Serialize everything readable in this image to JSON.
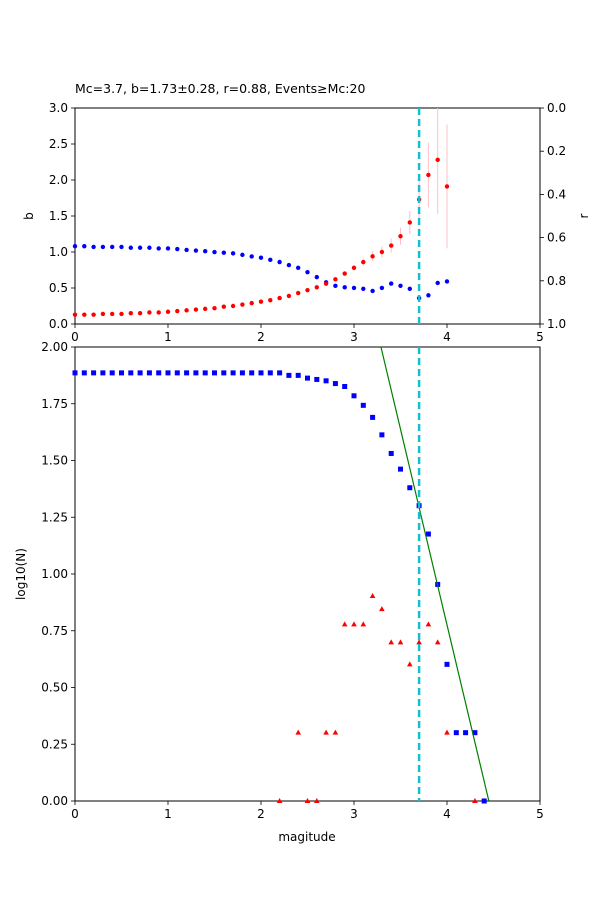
{
  "chart_data": [
    {
      "type": "scatter",
      "title": "Mc=3.7, b=1.73±0.28, r=0.88, Events≥Mc:20",
      "xlabel": "",
      "ylabel": "b",
      "y2label": "r",
      "xlim": [
        0,
        5
      ],
      "ylim": [
        0,
        3
      ],
      "y2lim": [
        1,
        0
      ],
      "x_ticks": [
        "0",
        "1",
        "2",
        "3",
        "4",
        "5"
      ],
      "y_ticks": [
        "0.0",
        "0.5",
        "1.0",
        "1.5",
        "2.0",
        "2.5",
        "3.0"
      ],
      "y2_ticks": [
        "0.0",
        "0.2",
        "0.4",
        "0.6",
        "0.8",
        "1.0"
      ],
      "mc_line_x": 3.7,
      "colors": {
        "b": "#ff0000",
        "r": "#0000ff",
        "err": "#ffc0cb",
        "mc": "#17becf"
      },
      "series": [
        {
          "axis": "left",
          "x": [
            0.0,
            0.1,
            0.2,
            0.3,
            0.4,
            0.5,
            0.6,
            0.7,
            0.8,
            0.9,
            1.0,
            1.1,
            1.2,
            1.3,
            1.4,
            1.5,
            1.6,
            1.7,
            1.8,
            1.9,
            2.0,
            2.1,
            2.2,
            2.3,
            2.4,
            2.5,
            2.6,
            2.7,
            2.8,
            2.9,
            3.0,
            3.1,
            3.2,
            3.3,
            3.4,
            3.5,
            3.6,
            3.7,
            3.8,
            3.9,
            4.0
          ],
          "values": [
            0.13,
            0.13,
            0.13,
            0.14,
            0.14,
            0.14,
            0.15,
            0.15,
            0.16,
            0.16,
            0.17,
            0.18,
            0.19,
            0.2,
            0.21,
            0.22,
            0.24,
            0.25,
            0.27,
            0.29,
            0.31,
            0.33,
            0.36,
            0.39,
            0.43,
            0.47,
            0.51,
            0.56,
            0.62,
            0.7,
            0.78,
            0.86,
            0.94,
            1.0,
            1.09,
            1.22,
            1.41,
            1.73,
            2.07,
            2.28,
            1.91
          ],
          "errors": [
            0,
            0,
            0,
            0,
            0,
            0,
            0,
            0,
            0,
            0,
            0,
            0,
            0,
            0,
            0,
            0,
            0,
            0,
            0,
            0,
            0,
            0,
            0,
            0,
            0,
            0,
            0,
            0,
            0,
            0.03,
            0.04,
            0.05,
            0.07,
            0.08,
            0.1,
            0.12,
            0.16,
            0.28,
            0.45,
            0.75,
            0.86
          ]
        },
        {
          "axis": "right",
          "x": [
            0.0,
            0.1,
            0.2,
            0.3,
            0.4,
            0.5,
            0.6,
            0.7,
            0.8,
            0.9,
            1.0,
            1.1,
            1.2,
            1.3,
            1.4,
            1.5,
            1.6,
            1.7,
            1.8,
            1.9,
            2.0,
            2.1,
            2.2,
            2.3,
            2.4,
            2.5,
            2.6,
            2.7,
            2.8,
            2.9,
            3.0,
            3.1,
            3.2,
            3.3,
            3.4,
            3.5,
            3.6,
            3.7,
            3.8,
            3.9,
            4.0
          ],
          "values": [
            0.64,
            0.64,
            0.643,
            0.643,
            0.643,
            0.643,
            0.647,
            0.647,
            0.647,
            0.65,
            0.65,
            0.653,
            0.657,
            0.66,
            0.663,
            0.667,
            0.67,
            0.673,
            0.68,
            0.687,
            0.693,
            0.703,
            0.713,
            0.727,
            0.74,
            0.76,
            0.783,
            0.807,
            0.823,
            0.83,
            0.833,
            0.837,
            0.847,
            0.833,
            0.813,
            0.823,
            0.837,
            0.88,
            0.867,
            0.81,
            0.803
          ]
        }
      ]
    },
    {
      "type": "scatter",
      "title": "",
      "xlabel": "magitude",
      "ylabel": "log10(N)",
      "xlim": [
        0,
        5
      ],
      "ylim": [
        0,
        2
      ],
      "x_ticks": [
        "0",
        "1",
        "2",
        "3",
        "4",
        "5"
      ],
      "y_ticks": [
        "0.00",
        "0.25",
        "0.50",
        "0.75",
        "1.00",
        "1.25",
        "1.50",
        "1.75",
        "2.00"
      ],
      "mc_line_x": 3.7,
      "colors": {
        "cumulative": "#0000ff",
        "noncumulative": "#ff0000",
        "fit": "#008000",
        "mc": "#17becf"
      },
      "fit_line": {
        "x": [
          3.29,
          4.45
        ],
        "y": [
          2.0,
          0.0
        ]
      },
      "series": [
        {
          "marker": "square",
          "x": [
            0.0,
            0.1,
            0.2,
            0.3,
            0.4,
            0.5,
            0.6,
            0.7,
            0.8,
            0.9,
            1.0,
            1.1,
            1.2,
            1.3,
            1.4,
            1.5,
            1.6,
            1.7,
            1.8,
            1.9,
            2.0,
            2.1,
            2.2,
            2.3,
            2.4,
            2.5,
            2.6,
            2.7,
            2.8,
            2.9,
            3.0,
            3.1,
            3.2,
            3.3,
            3.4,
            3.5,
            3.6,
            3.7,
            3.8,
            3.9,
            4.0,
            4.1,
            4.2,
            4.3,
            4.4
          ],
          "values": [
            1.886,
            1.886,
            1.886,
            1.886,
            1.886,
            1.886,
            1.886,
            1.886,
            1.886,
            1.886,
            1.886,
            1.886,
            1.886,
            1.886,
            1.886,
            1.886,
            1.886,
            1.886,
            1.886,
            1.886,
            1.886,
            1.886,
            1.886,
            1.875,
            1.875,
            1.863,
            1.857,
            1.851,
            1.839,
            1.826,
            1.785,
            1.743,
            1.69,
            1.613,
            1.531,
            1.462,
            1.38,
            1.301,
            1.176,
            0.954,
            0.602,
            0.301,
            0.301,
            0.301,
            0.0
          ]
        },
        {
          "marker": "triangle",
          "x": [
            2.2,
            2.4,
            2.5,
            2.6,
            2.7,
            2.8,
            2.9,
            3.0,
            3.1,
            3.2,
            3.3,
            3.4,
            3.5,
            3.6,
            3.7,
            3.8,
            3.9,
            4.0,
            4.3
          ],
          "values": [
            0.0,
            0.301,
            0.0,
            0.0,
            0.301,
            0.301,
            0.778,
            0.778,
            0.778,
            0.903,
            0.845,
            0.699,
            0.699,
            0.602,
            0.699,
            0.778,
            0.699,
            0.301,
            0.0
          ]
        }
      ]
    }
  ]
}
